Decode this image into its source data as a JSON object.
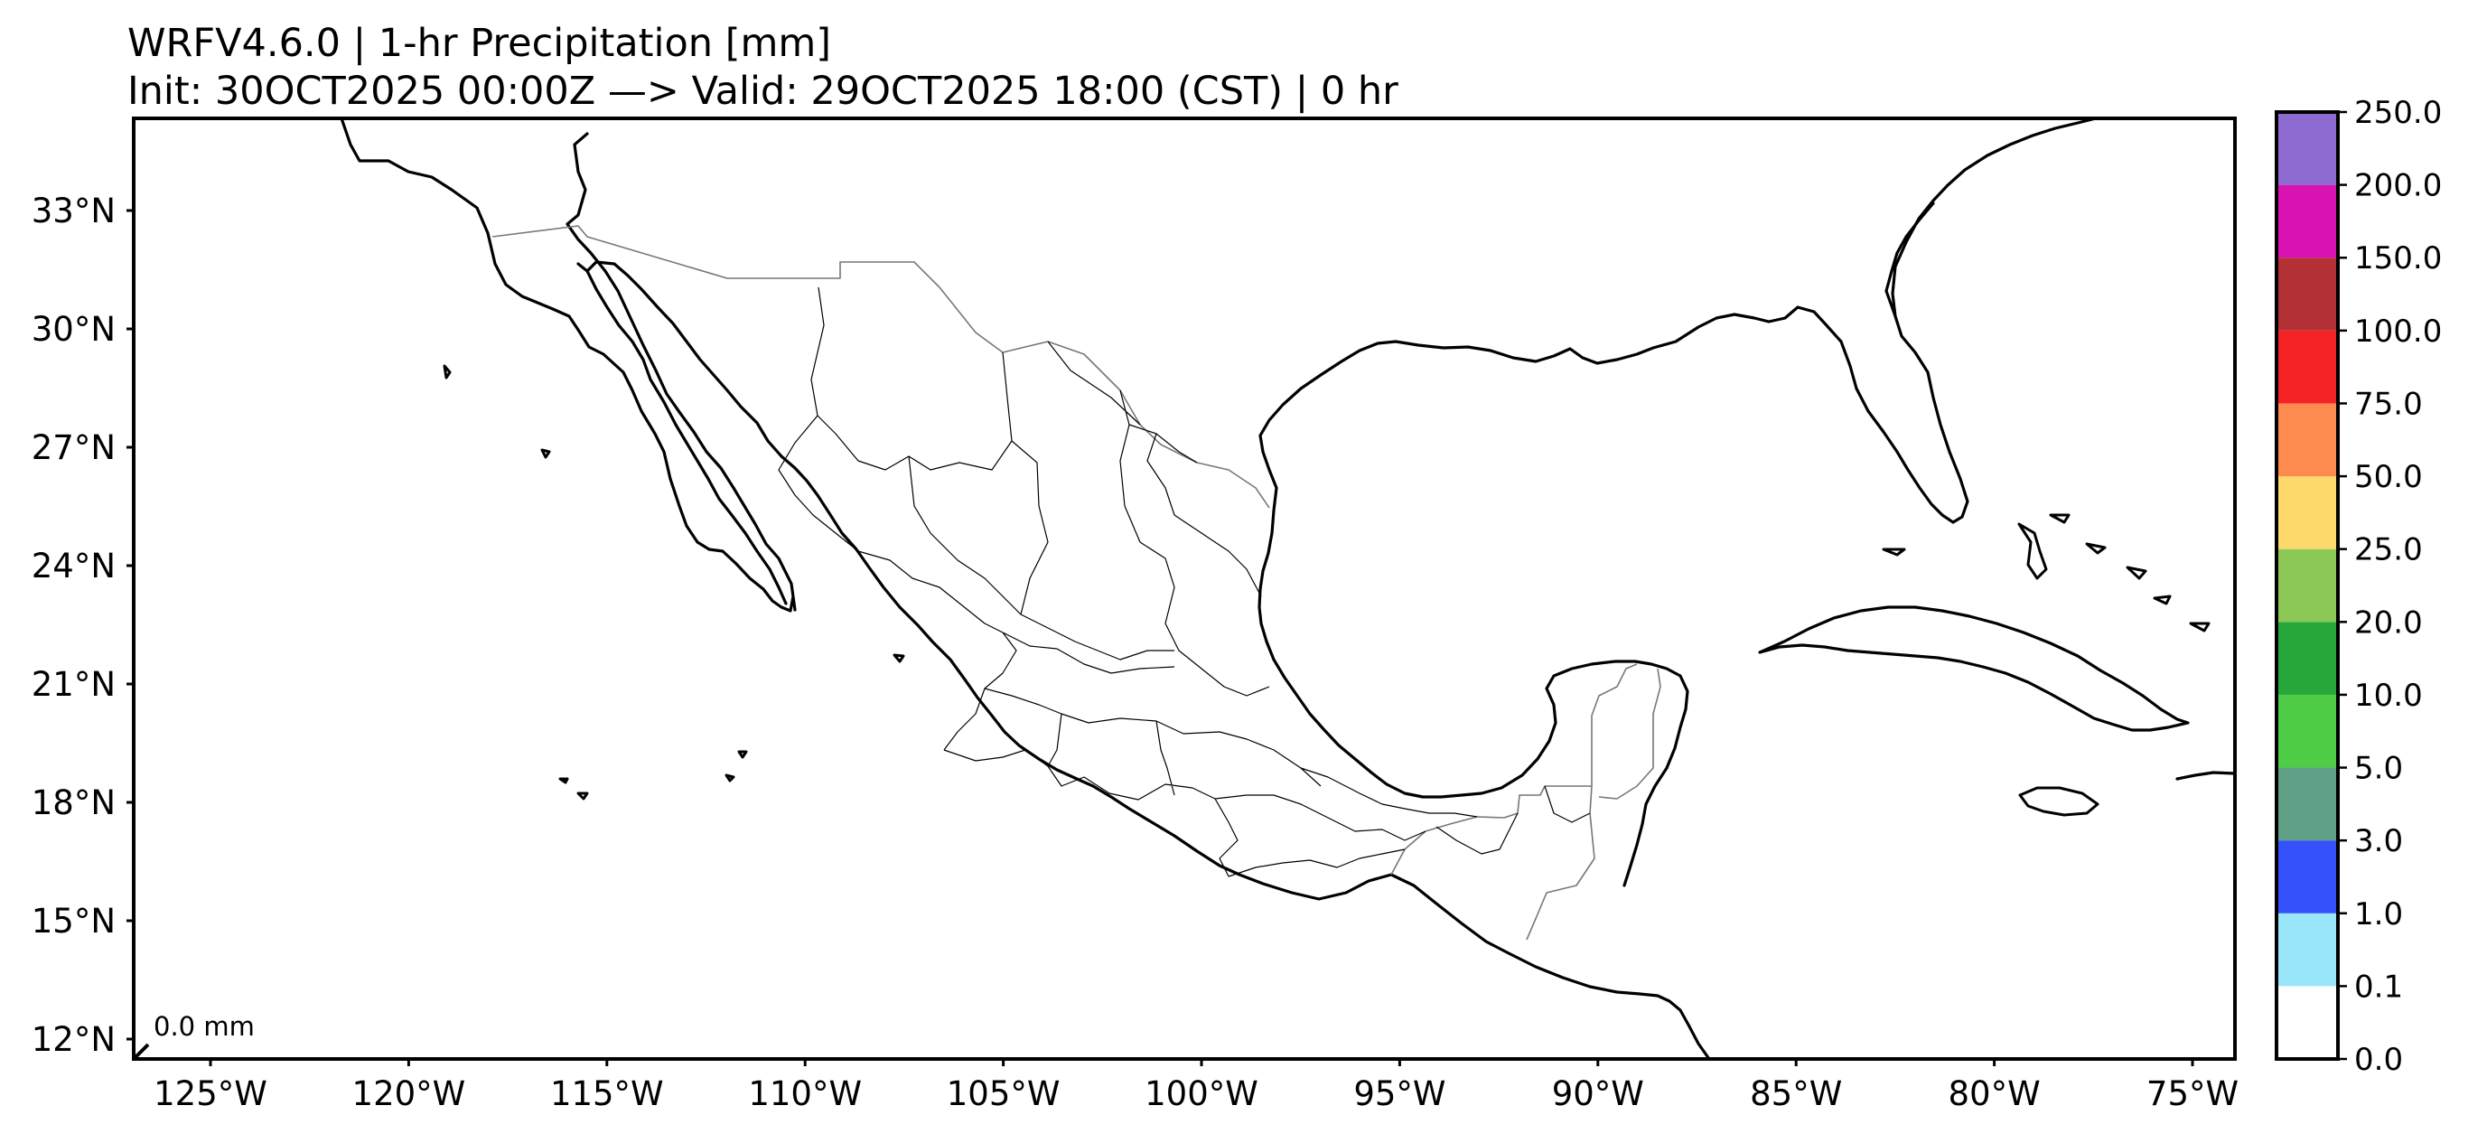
{
  "title": {
    "line1": "WRFV4.6.0 | 1-hr Precipitation [mm]",
    "line2": "Init: 30OCT2025 00:00Z  —>  Valid: 29OCT2025 18:00 (CST)  |  0 hr"
  },
  "map": {
    "lat_labels": [
      "33°N",
      "30°N",
      "27°N",
      "24°N",
      "21°N",
      "18°N",
      "15°N",
      "12°N"
    ],
    "lon_labels": [
      "125°W",
      "120°W",
      "115°W",
      "110°W",
      "105°W",
      "100°W",
      "95°W",
      "90°W",
      "85°W",
      "80°W",
      "75°W"
    ],
    "annotation": "0.0 mm",
    "frame_color": "#000000",
    "coast_color": "#000000",
    "border_color": "#777777"
  },
  "colorbar": {
    "bins": [
      {
        "label": "0.0",
        "color": "#ffffff"
      },
      {
        "label": "0.1",
        "color": "#99e6fb"
      },
      {
        "label": "1.0",
        "color": "#3451fb"
      },
      {
        "label": "3.0",
        "color": "#5e9f86"
      },
      {
        "label": "5.0",
        "color": "#4fcd46"
      },
      {
        "label": "10.0",
        "color": "#27a739"
      },
      {
        "label": "20.0",
        "color": "#8cc855"
      },
      {
        "label": "25.0",
        "color": "#fdd86a"
      },
      {
        "label": "50.0",
        "color": "#fd8a4e"
      },
      {
        "label": "75.0",
        "color": "#f52325"
      },
      {
        "label": "100.0",
        "color": "#b33035"
      },
      {
        "label": "150.0",
        "color": "#d912b2"
      },
      {
        "label": "200.0",
        "color": "#8e6bd1"
      }
    ],
    "top_label": "250.0"
  }
}
